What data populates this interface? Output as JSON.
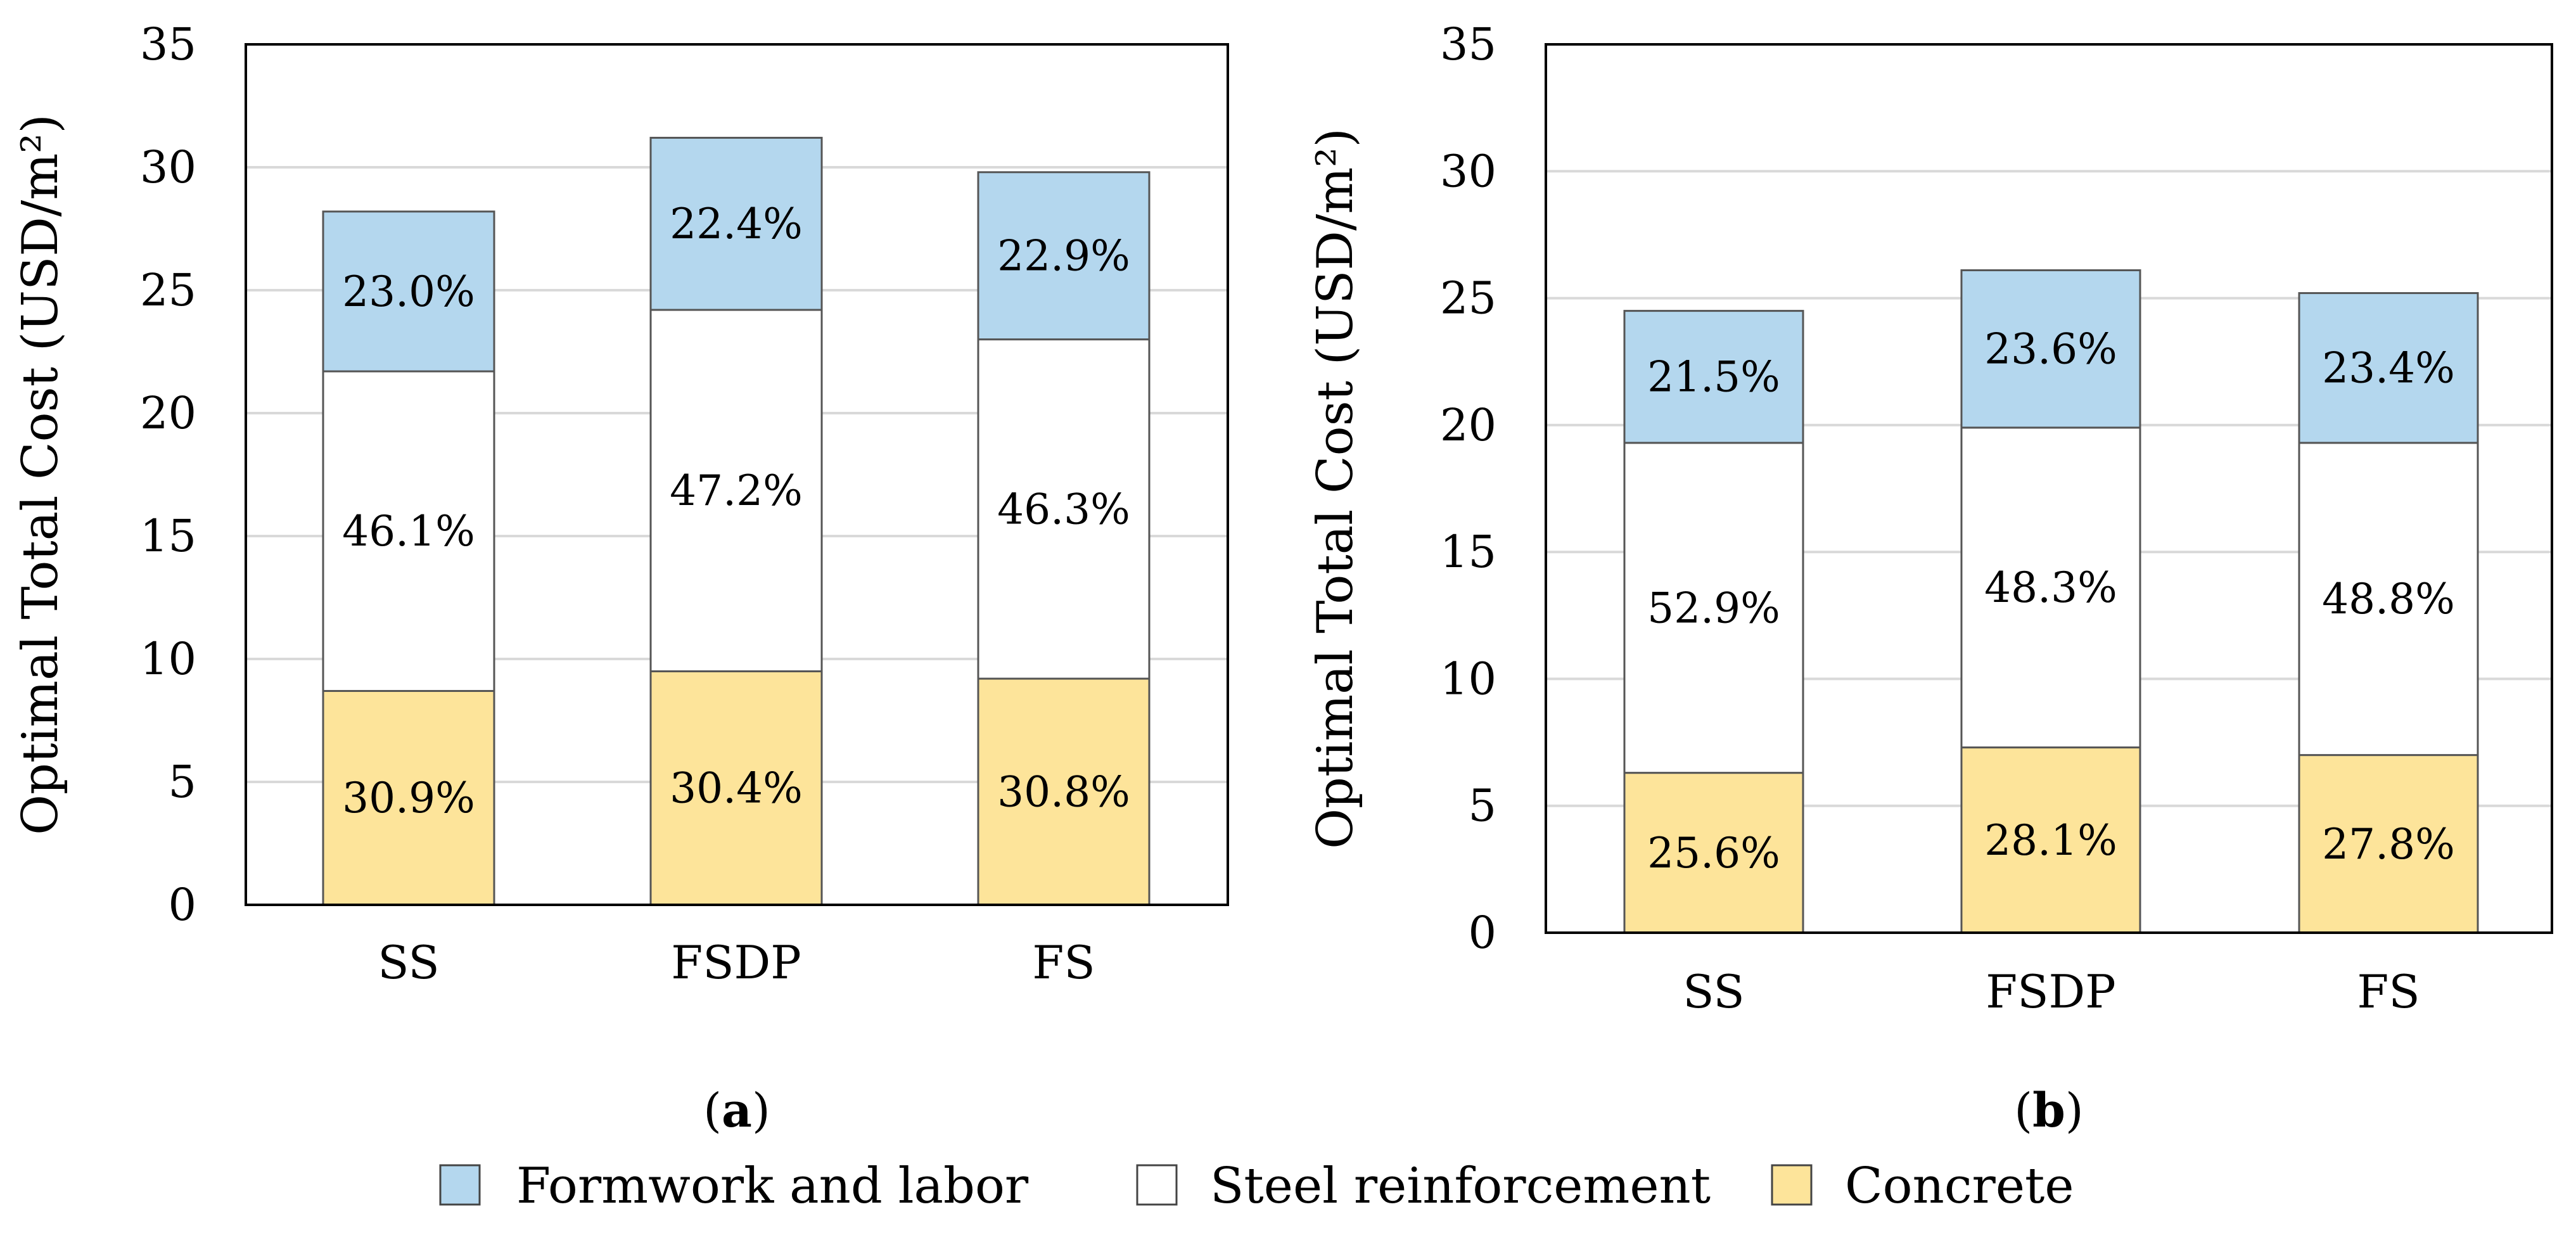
{
  "figure": {
    "legend": [
      {
        "label": "Formwork and labor",
        "color": "#b4d7ee"
      },
      {
        "label": "Steel reinforcement",
        "color": "#ffffff"
      },
      {
        "label": "Concrete",
        "color": "#fde49a"
      }
    ]
  },
  "chart_data": [
    {
      "type": "bar",
      "stacked": true,
      "subtitle": "(a)",
      "ylabel": "Optimal Total Cost (USD/m²)",
      "ylim": [
        0,
        35
      ],
      "yticks": [
        0,
        5,
        10,
        15,
        20,
        25,
        30,
        35
      ],
      "grid": true,
      "categories": [
        "SS",
        "FSDP",
        "FS"
      ],
      "series": [
        {
          "name": "Concrete",
          "color": "#fde49a",
          "values": [
            8.7,
            9.5,
            9.2
          ],
          "labels": [
            "30.9%",
            "30.4%",
            "30.8%"
          ]
        },
        {
          "name": "Steel reinforcement",
          "color": "#ffffff",
          "values": [
            13.0,
            14.7,
            13.8
          ],
          "labels": [
            "46.1%",
            "47.2%",
            "46.3%"
          ]
        },
        {
          "name": "Formwork and labor",
          "color": "#b4d7ee",
          "values": [
            6.5,
            7.0,
            6.8
          ],
          "labels": [
            "23.0%",
            "22.4%",
            "22.9%"
          ]
        }
      ]
    },
    {
      "type": "bar",
      "stacked": true,
      "subtitle": "(b)",
      "ylabel": "Optimal Total Cost (USD/m²)",
      "ylim": [
        0,
        35
      ],
      "yticks": [
        0,
        5,
        10,
        15,
        20,
        25,
        30,
        35
      ],
      "grid": true,
      "categories": [
        "SS",
        "FSDP",
        "FS"
      ],
      "series": [
        {
          "name": "Concrete",
          "color": "#fde49a",
          "values": [
            6.3,
            7.3,
            7.0
          ],
          "labels": [
            "25.6%",
            "28.1%",
            "27.8%"
          ]
        },
        {
          "name": "Steel reinforcement",
          "color": "#ffffff",
          "values": [
            13.0,
            12.6,
            12.3
          ],
          "labels": [
            "52.9%",
            "48.3%",
            "48.8%"
          ]
        },
        {
          "name": "Formwork and labor",
          "color": "#b4d7ee",
          "values": [
            5.2,
            6.2,
            5.9
          ],
          "labels": [
            "21.5%",
            "23.6%",
            "23.4%"
          ]
        }
      ]
    }
  ]
}
